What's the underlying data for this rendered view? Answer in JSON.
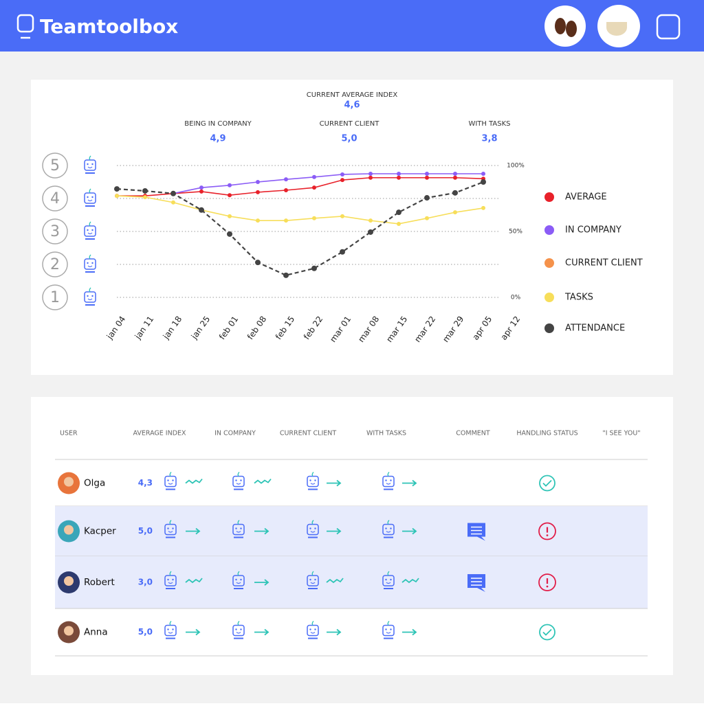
{
  "header": {
    "brand": "Teamtoolbox"
  },
  "stats": {
    "main": {
      "label": "CURRENT AVERAGE INDEX",
      "value": "4,6"
    },
    "items": [
      {
        "label": "BEING IN COMPANY",
        "value": "4,9"
      },
      {
        "label": "CURRENT CLIENT",
        "value": "5,0"
      },
      {
        "label": "WITH TASKS",
        "value": "3,8"
      }
    ]
  },
  "chart": {
    "type": "line",
    "categories": [
      "jan 04",
      "jan 11",
      "jan 18",
      "jan 25",
      "feb 01",
      "feb 08",
      "feb 15",
      "feb 22",
      "mar 01",
      "mar 08",
      "mar 15",
      "mar 22",
      "mar 29",
      "apr 05",
      "apr 12"
    ],
    "ylim": [
      1,
      5
    ],
    "yticks": [
      1,
      2,
      3,
      4,
      5
    ],
    "y2lim": [
      0,
      100
    ],
    "y2ticks": [
      {
        "value": 0,
        "label": "0%"
      },
      {
        "value": 50,
        "label": "50%"
      },
      {
        "value": 100,
        "label": "100%"
      }
    ],
    "grid": true,
    "series": [
      {
        "name": "AVERAGE",
        "color": "#e8212a",
        "values": [
          4.08,
          4.08,
          4.15,
          4.21,
          4.1,
          4.19,
          4.25,
          4.33,
          4.56,
          4.63,
          4.63,
          4.63,
          4.63,
          4.6,
          null
        ]
      },
      {
        "name": "IN COMPANY",
        "color": "#8b5cf6",
        "values": [
          null,
          null,
          4.15,
          4.33,
          4.4,
          4.5,
          4.58,
          4.65,
          4.73,
          4.75,
          4.75,
          4.75,
          4.75,
          4.75,
          null
        ]
      },
      {
        "name": "CURRENT CLIENT",
        "color": "#f5924b",
        "values": [
          null,
          null,
          null,
          null,
          null,
          null,
          null,
          null,
          null,
          null,
          null,
          null,
          null,
          null,
          null
        ]
      },
      {
        "name": "TASKS",
        "color": "#f7de5a",
        "values": [
          4.08,
          4.04,
          3.88,
          3.65,
          3.46,
          3.33,
          3.33,
          3.4,
          3.46,
          3.33,
          3.23,
          3.4,
          3.58,
          3.71,
          null
        ]
      },
      {
        "name": "ATTENDANCE",
        "color": "#444444",
        "dashed": true,
        "values": [
          4.29,
          4.23,
          4.15,
          3.65,
          2.92,
          2.06,
          1.67,
          1.88,
          2.38,
          2.98,
          3.58,
          4.02,
          4.17,
          4.5,
          null
        ]
      }
    ]
  },
  "table": {
    "columns": [
      "USER",
      "AVERAGE INDEX",
      "IN COMPANY",
      "CURRENT CLIENT",
      "WITH TASKS",
      "COMMENT",
      "HANDLING STATUS",
      "\"I SEE YOU\""
    ],
    "rows": [
      {
        "name": "Olga",
        "index": "4,3",
        "trends": [
          "wave",
          "wave",
          "flat",
          "flat"
        ],
        "comment": false,
        "status": "ok",
        "highlight": false,
        "avatar": "#e8743b"
      },
      {
        "name": "Kacper",
        "index": "5,0",
        "trends": [
          "flat",
          "flat",
          "flat",
          "flat"
        ],
        "comment": true,
        "status": "alert",
        "highlight": true,
        "avatar": "#3aa6b9"
      },
      {
        "name": "Robert",
        "index": "3,0",
        "trends": [
          "wave",
          "flat",
          "wave",
          "wave"
        ],
        "comment": true,
        "status": "alert",
        "highlight": true,
        "avatar": "#2d3a6e"
      },
      {
        "name": "Anna",
        "index": "5,0",
        "trends": [
          "flat",
          "flat",
          "flat",
          "flat"
        ],
        "comment": false,
        "status": "ok",
        "highlight": false,
        "avatar": "#7a4a3a"
      }
    ]
  }
}
